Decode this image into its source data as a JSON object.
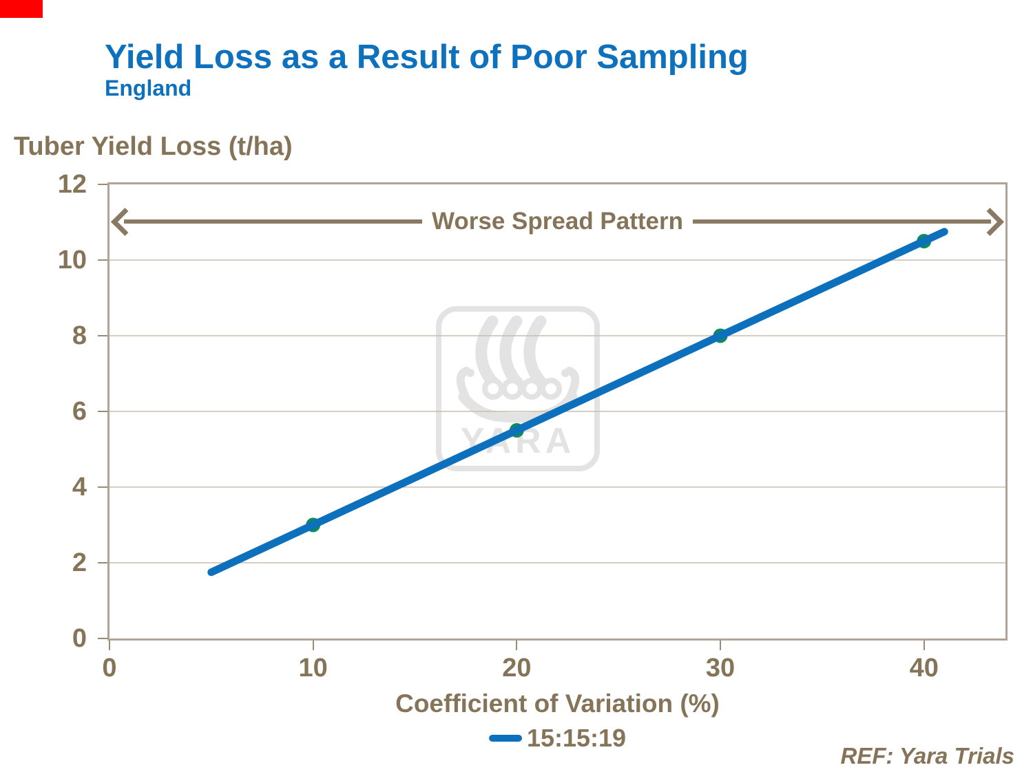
{
  "title": "Yield Loss as a Result of Poor Sampling",
  "subtitle": "England",
  "annotation": "Worse Spread Pattern",
  "ref_note": "REF: Yara Trials",
  "watermark_text": "YARA",
  "colors": {
    "title_blue": "#0e71bd",
    "line_blue": "#0d70bc",
    "marker_green": "#0c8a60",
    "text_brown": "#857458",
    "arrow_brown": "#8a7a63",
    "frame_tan": "#b1a496",
    "grid_tan": "#c9bdad",
    "watermark_gray": "#e3e3e3",
    "corner_marker_red": "#ff0000"
  },
  "chart_data": {
    "type": "line",
    "title": "Yield Loss as a Result of Poor Sampling",
    "subtitle": "England",
    "xlabel": "Coefficient of Variation (%)",
    "ylabel": "Tuber Yield Loss (t/ha)",
    "xlim": [
      0,
      44
    ],
    "ylim": [
      0,
      12
    ],
    "x_ticks": [
      0,
      10,
      20,
      30,
      40
    ],
    "y_ticks": [
      0,
      2,
      4,
      6,
      8,
      10,
      12
    ],
    "grid": "horizontal-only",
    "legend_position": "bottom-center",
    "annotations": [
      {
        "text": "Worse Spread Pattern",
        "type": "double-headed-arrow",
        "y": 11,
        "x_span": [
          0,
          44
        ]
      }
    ],
    "series": [
      {
        "name": "15:15:19",
        "line_points": [
          [
            5,
            1.75
          ],
          [
            41,
            10.75
          ]
        ],
        "markers": [
          [
            10,
            3
          ],
          [
            20,
            5.5
          ],
          [
            30,
            8
          ],
          [
            40,
            10.5
          ]
        ]
      }
    ]
  }
}
